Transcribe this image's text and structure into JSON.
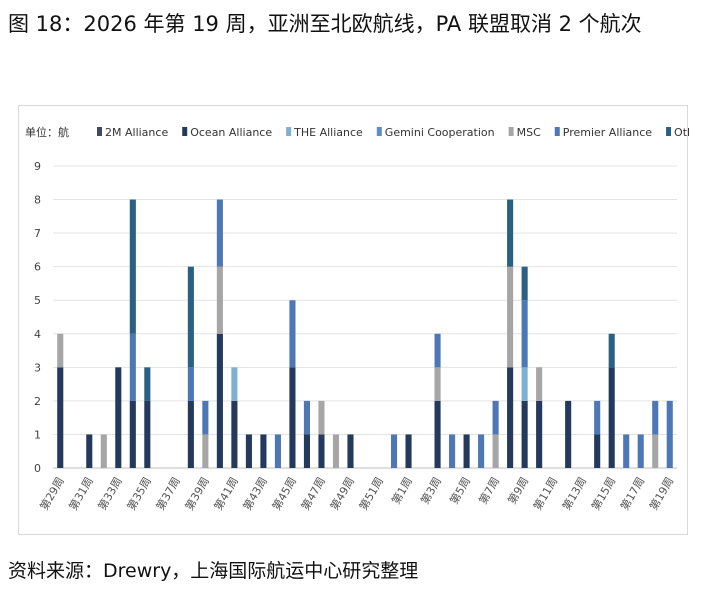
{
  "figure_title": "图 18：2026 年第 19 周，亚洲至北欧航线，PA 联盟取消 2 个航次",
  "source": "资料来源：Drewry，上海国际航运中心研究整理",
  "chart_data": {
    "type": "bar",
    "stacked": true,
    "unit_label": "单位：航",
    "ylim": [
      0,
      9
    ],
    "yticks": [
      0,
      1,
      2,
      3,
      4,
      5,
      6,
      7,
      8,
      9
    ],
    "grid": true,
    "legend_position": "top",
    "categories": [
      "第29周",
      "第30周",
      "第31周",
      "第32周",
      "第33周",
      "第34周",
      "第35周",
      "第36周",
      "第37周",
      "第38周",
      "第39周",
      "第40周",
      "第41周",
      "第42周",
      "第43周",
      "第44周",
      "第45周",
      "第46周",
      "第47周",
      "第48周",
      "第49周",
      "第50周",
      "第51周",
      "第52周",
      "第1周",
      "第2周",
      "第3周",
      "第4周",
      "第5周",
      "第6周",
      "第7周",
      "第8周",
      "第9周",
      "第10周",
      "第11周",
      "第12周",
      "第13周",
      "第14周",
      "第15周",
      "第16周",
      "第17周",
      "第18周",
      "第19周"
    ],
    "tick_labels": [
      "第29周",
      "第31周",
      "第33周",
      "第35周",
      "第37周",
      "第39周",
      "第41周",
      "第43周",
      "第45周",
      "第47周",
      "第49周",
      "第51周",
      "第1周",
      "第3周",
      "第5周",
      "第7周",
      "第9周",
      "第11周",
      "第13周",
      "第15周",
      "第17周",
      "第19周"
    ],
    "series": [
      {
        "name": "2M Alliance",
        "color": "#3f4a5e",
        "values": [
          0,
          0,
          0,
          0,
          0,
          0,
          0,
          0,
          0,
          0,
          0,
          0,
          0,
          0,
          0,
          0,
          0,
          0,
          0,
          0,
          0,
          0,
          0,
          0,
          0,
          0,
          0,
          0,
          0,
          0,
          0,
          0,
          0,
          0,
          0,
          0,
          0,
          0,
          0,
          0,
          0,
          0,
          0
        ]
      },
      {
        "name": "Ocean Alliance",
        "color": "#243a5c",
        "values": [
          3,
          0,
          1,
          0,
          3,
          2,
          2,
          0,
          0,
          2,
          0,
          4,
          2,
          1,
          1,
          0,
          3,
          1,
          1,
          0,
          1,
          0,
          0,
          0,
          1,
          0,
          2,
          0,
          1,
          0,
          0,
          3,
          2,
          2,
          0,
          2,
          0,
          1,
          3,
          0,
          0,
          0,
          0
        ]
      },
      {
        "name": "THE Alliance",
        "color": "#7fb0d3",
        "values": [
          0,
          0,
          0,
          0,
          0,
          0,
          0,
          0,
          0,
          0,
          0,
          0,
          1,
          0,
          0,
          0,
          0,
          0,
          0,
          0,
          0,
          0,
          0,
          0,
          0,
          0,
          0,
          0,
          0,
          0,
          0,
          0,
          1,
          0,
          0,
          0,
          0,
          0,
          0,
          0,
          0,
          0,
          0
        ]
      },
      {
        "name": "Gemini Cooperation",
        "color": "#5b8fc6",
        "values": [
          0,
          0,
          0,
          0,
          0,
          0,
          0,
          0,
          0,
          0,
          0,
          0,
          0,
          0,
          0,
          0,
          0,
          0,
          0,
          0,
          0,
          0,
          0,
          0,
          0,
          0,
          0,
          0,
          0,
          0,
          0,
          0,
          0,
          0,
          0,
          0,
          0,
          0,
          0,
          0,
          0,
          0,
          0
        ]
      },
      {
        "name": "MSC",
        "color": "#a6a6a6",
        "values": [
          1,
          0,
          0,
          1,
          0,
          0,
          0,
          0,
          0,
          0,
          1,
          2,
          0,
          0,
          0,
          0,
          0,
          0,
          1,
          1,
          0,
          0,
          0,
          0,
          0,
          0,
          1,
          0,
          0,
          0,
          1,
          3,
          0,
          1,
          0,
          0,
          0,
          0,
          0,
          0,
          0,
          1,
          0
        ]
      },
      {
        "name": "Premier Alliance",
        "color": "#4e78b5",
        "values": [
          0,
          0,
          0,
          0,
          0,
          2,
          0,
          0,
          0,
          1,
          1,
          2,
          0,
          0,
          0,
          1,
          2,
          1,
          0,
          0,
          0,
          0,
          0,
          1,
          0,
          0,
          1,
          1,
          0,
          1,
          1,
          0,
          2,
          0,
          0,
          0,
          0,
          1,
          0,
          1,
          1,
          1,
          2
        ]
      },
      {
        "name": "Others",
        "color": "#2a6182",
        "values": [
          0,
          0,
          0,
          0,
          0,
          4,
          1,
          0,
          0,
          3,
          0,
          0,
          0,
          0,
          0,
          0,
          0,
          0,
          0,
          0,
          0,
          0,
          0,
          0,
          0,
          0,
          0,
          0,
          0,
          0,
          0,
          2,
          1,
          0,
          0,
          0,
          0,
          0,
          1,
          0,
          0,
          0,
          0
        ]
      }
    ]
  }
}
